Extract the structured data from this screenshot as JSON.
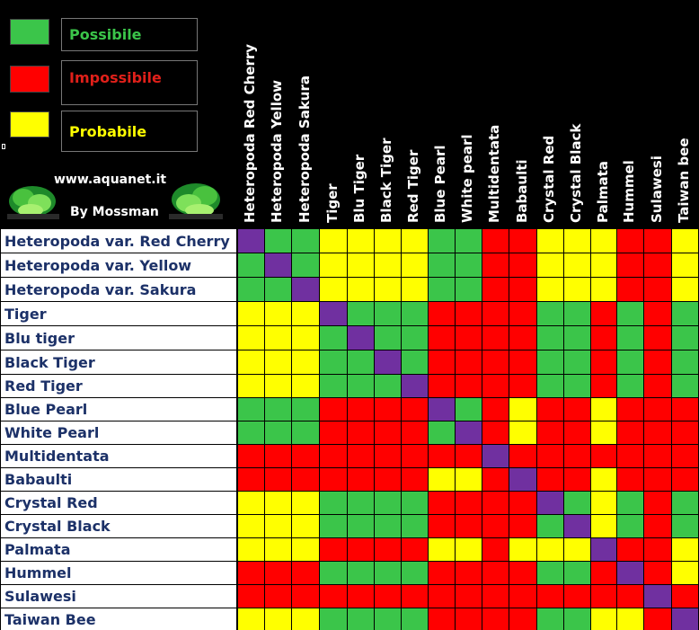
{
  "legend": {
    "items": [
      {
        "key": "G",
        "label": "Possibile",
        "color": "#3bc54a",
        "text_color": "#3bc54a"
      },
      {
        "key": "R",
        "label": "Impossibile",
        "color": "#ff0000",
        "text_color": "#e0201a"
      },
      {
        "key": "Y",
        "label": "Probabile",
        "color": "#ffff00",
        "text_color": "#ffff00"
      }
    ],
    "diagonal_color": "#7030a0"
  },
  "credits": {
    "site": "www.aquanet.it",
    "author": "By Mossman"
  },
  "chart_data": {
    "type": "heatmap",
    "rows": [
      "Heteropoda var. Red Cherry",
      "Heteropoda var. Yellow",
      "Heteropoda var. Sakura",
      "Tiger",
      "Blu tiger",
      "Black Tiger",
      "Red Tiger",
      "Blue Pearl",
      "White Pearl",
      "Multidentata",
      "Babaulti",
      "Crystal Red",
      "Crystal Black",
      "Palmata",
      "Hummel",
      "Sulawesi",
      "Taiwan Bee"
    ],
    "columns": [
      "Heteropoda Red Cherry",
      "Heteropoda Yellow",
      "Heteropoda Sakura",
      "Tiger",
      "Blu Tiger",
      "Black Tiger",
      "Red Tiger",
      "Blue Pearl",
      "White pearl",
      "Multidentata",
      "Babaulti",
      "Crystal Red",
      "Crystal Black",
      "Palmata",
      "Hummel",
      "Sulawesi",
      "Taiwan bee"
    ],
    "values": [
      [
        "P",
        "G",
        "G",
        "Y",
        "Y",
        "Y",
        "Y",
        "G",
        "G",
        "R",
        "R",
        "Y",
        "Y",
        "Y",
        "R",
        "R",
        "Y"
      ],
      [
        "G",
        "P",
        "G",
        "Y",
        "Y",
        "Y",
        "Y",
        "G",
        "G",
        "R",
        "R",
        "Y",
        "Y",
        "Y",
        "R",
        "R",
        "Y"
      ],
      [
        "G",
        "G",
        "P",
        "Y",
        "Y",
        "Y",
        "Y",
        "G",
        "G",
        "R",
        "R",
        "Y",
        "Y",
        "Y",
        "R",
        "R",
        "Y"
      ],
      [
        "Y",
        "Y",
        "Y",
        "P",
        "G",
        "G",
        "G",
        "R",
        "R",
        "R",
        "R",
        "G",
        "G",
        "R",
        "G",
        "R",
        "G"
      ],
      [
        "Y",
        "Y",
        "Y",
        "G",
        "P",
        "G",
        "G",
        "R",
        "R",
        "R",
        "R",
        "G",
        "G",
        "R",
        "G",
        "R",
        "G"
      ],
      [
        "Y",
        "Y",
        "Y",
        "G",
        "G",
        "P",
        "G",
        "R",
        "R",
        "R",
        "R",
        "G",
        "G",
        "R",
        "G",
        "R",
        "G"
      ],
      [
        "Y",
        "Y",
        "Y",
        "G",
        "G",
        "G",
        "P",
        "R",
        "R",
        "R",
        "R",
        "G",
        "G",
        "R",
        "G",
        "R",
        "G"
      ],
      [
        "G",
        "G",
        "G",
        "R",
        "R",
        "R",
        "R",
        "P",
        "G",
        "R",
        "Y",
        "R",
        "R",
        "Y",
        "R",
        "R",
        "R"
      ],
      [
        "G",
        "G",
        "G",
        "R",
        "R",
        "R",
        "R",
        "G",
        "P",
        "R",
        "Y",
        "R",
        "R",
        "Y",
        "R",
        "R",
        "R"
      ],
      [
        "R",
        "R",
        "R",
        "R",
        "R",
        "R",
        "R",
        "R",
        "R",
        "P",
        "R",
        "R",
        "R",
        "R",
        "R",
        "R",
        "R"
      ],
      [
        "R",
        "R",
        "R",
        "R",
        "R",
        "R",
        "R",
        "Y",
        "Y",
        "R",
        "P",
        "R",
        "R",
        "Y",
        "R",
        "R",
        "R"
      ],
      [
        "Y",
        "Y",
        "Y",
        "G",
        "G",
        "G",
        "G",
        "R",
        "R",
        "R",
        "R",
        "P",
        "G",
        "Y",
        "G",
        "R",
        "G"
      ],
      [
        "Y",
        "Y",
        "Y",
        "G",
        "G",
        "G",
        "G",
        "R",
        "R",
        "R",
        "R",
        "G",
        "P",
        "Y",
        "G",
        "R",
        "G"
      ],
      [
        "Y",
        "Y",
        "Y",
        "R",
        "R",
        "R",
        "R",
        "Y",
        "Y",
        "R",
        "Y",
        "Y",
        "Y",
        "P",
        "R",
        "R",
        "Y"
      ],
      [
        "R",
        "R",
        "R",
        "G",
        "G",
        "G",
        "G",
        "R",
        "R",
        "R",
        "R",
        "G",
        "G",
        "R",
        "P",
        "R",
        "Y"
      ],
      [
        "R",
        "R",
        "R",
        "R",
        "R",
        "R",
        "R",
        "R",
        "R",
        "R",
        "R",
        "R",
        "R",
        "R",
        "R",
        "P",
        "R"
      ],
      [
        "Y",
        "Y",
        "Y",
        "G",
        "G",
        "G",
        "G",
        "R",
        "R",
        "R",
        "R",
        "G",
        "G",
        "Y",
        "Y",
        "R",
        "P"
      ]
    ]
  }
}
